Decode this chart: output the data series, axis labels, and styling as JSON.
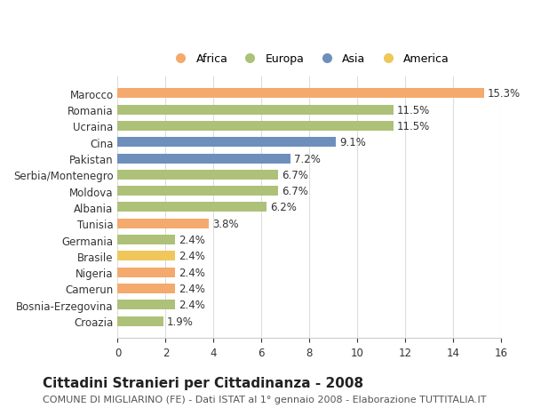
{
  "countries": [
    "Marocco",
    "Romania",
    "Ucraina",
    "Cina",
    "Pakistan",
    "Serbia/Montenegro",
    "Moldova",
    "Albania",
    "Tunisia",
    "Germania",
    "Brasile",
    "Nigeria",
    "Camerun",
    "Bosnia-Erzegovina",
    "Croazia"
  ],
  "values": [
    15.3,
    11.5,
    11.5,
    9.1,
    7.2,
    6.7,
    6.7,
    6.2,
    3.8,
    2.4,
    2.4,
    2.4,
    2.4,
    2.4,
    1.9
  ],
  "bar_colors": [
    "#f4a96d",
    "#adc178",
    "#adc178",
    "#6e8fbb",
    "#6e8fbb",
    "#adc178",
    "#adc178",
    "#adc178",
    "#f4a96d",
    "#adc178",
    "#f0c75a",
    "#f4a96d",
    "#f4a96d",
    "#adc178",
    "#adc178"
  ],
  "legend_labels": [
    "Africa",
    "Europa",
    "Asia",
    "America"
  ],
  "legend_colors": [
    "#f4a96d",
    "#adc178",
    "#6e8fbb",
    "#f0c75a"
  ],
  "title": "Cittadini Stranieri per Cittadinanza - 2008",
  "subtitle": "COMUNE DI MIGLIARINO (FE) - Dati ISTAT al 1° gennaio 2008 - Elaborazione TUTTITALIA.IT",
  "xlim": [
    0,
    16
  ],
  "xticks": [
    0,
    2,
    4,
    6,
    8,
    10,
    12,
    14,
    16
  ],
  "background_color": "#ffffff",
  "bar_height": 0.6,
  "grid_color": "#dddddd",
  "title_fontsize": 11,
  "subtitle_fontsize": 8,
  "label_fontsize": 8.5,
  "value_fontsize": 8.5,
  "legend_fontsize": 9,
  "tick_fontsize": 8.5
}
